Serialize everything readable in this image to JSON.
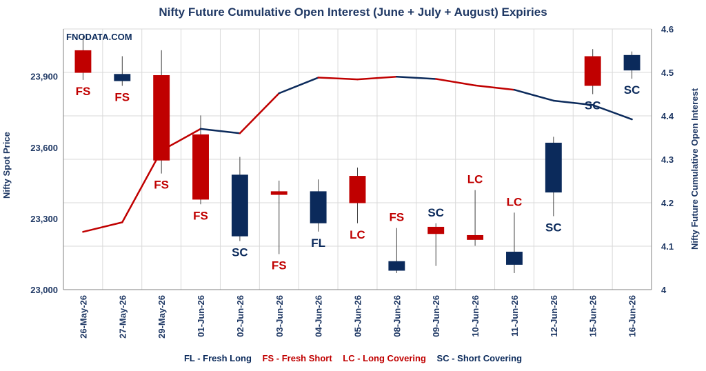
{
  "chart_data": {
    "type": "candlestick_with_line",
    "title": "Nifty Future Cumulative Open Interest (June + July + August) Expiries",
    "watermark": "FNODATA.COM",
    "ylabel_left": "Nifty Spot Price",
    "ylabel_right": "Nifty Future Cumulative Open Interest",
    "ylim_left": [
      23000,
      24100
    ],
    "yticks_left": [
      "23,000",
      "23,300",
      "23,600",
      "23,900"
    ],
    "ylim_right": [
      4.0,
      4.6
    ],
    "yticks_right": [
      "4",
      "4.1",
      "4.2",
      "4.3",
      "4.4",
      "4.5",
      "4.6"
    ],
    "grid": true,
    "categories": [
      "26-May-26",
      "27-May-26",
      "29-May-26",
      "01-Jun-26",
      "02-Jun-26",
      "03-Jun-26",
      "04-Jun-26",
      "05-Jun-26",
      "08-Jun-26",
      "09-Jun-26",
      "10-Jun-26",
      "11-Jun-26",
      "12-Jun-26",
      "15-Jun-26",
      "16-Jun-26"
    ],
    "candles": [
      {
        "open": 23915,
        "close": 24010,
        "high": 24070,
        "low": 23885,
        "color": "#c00000"
      },
      {
        "open": 23910,
        "close": 23880,
        "high": 23985,
        "low": 23860,
        "color": "#0b2a5b"
      },
      {
        "open": 23905,
        "close": 23545,
        "high": 24010,
        "low": 23490,
        "color": "#c00000"
      },
      {
        "open": 23655,
        "close": 23380,
        "high": 23735,
        "low": 23360,
        "color": "#c00000"
      },
      {
        "open": 23485,
        "close": 23225,
        "high": 23560,
        "low": 23205,
        "color": "#0b2a5b"
      },
      {
        "open": 23415,
        "close": 23400,
        "high": 23460,
        "low": 23150,
        "color": "#c00000"
      },
      {
        "open": 23415,
        "close": 23280,
        "high": 23465,
        "low": 23245,
        "color": "#0b2a5b"
      },
      {
        "open": 23480,
        "close": 23365,
        "high": 23515,
        "low": 23280,
        "color": "#c00000"
      },
      {
        "open": 23120,
        "close": 23080,
        "high": 23260,
        "low": 23070,
        "color": "#0b2a5b"
      },
      {
        "open": 23265,
        "close": 23235,
        "high": 23280,
        "low": 23100,
        "color": "#c00000"
      },
      {
        "open": 23230,
        "close": 23210,
        "high": 23420,
        "low": 23185,
        "color": "#c00000"
      },
      {
        "open": 23160,
        "close": 23105,
        "high": 23325,
        "low": 23070,
        "color": "#0b2a5b"
      },
      {
        "open": 23620,
        "close": 23410,
        "high": 23645,
        "low": 23310,
        "color": "#0b2a5b"
      },
      {
        "open": 23985,
        "close": 23860,
        "high": 24015,
        "low": 23825,
        "color": "#c00000"
      },
      {
        "open": 23990,
        "close": 23925,
        "high": 24005,
        "low": 23890,
        "color": "#0b2a5b"
      }
    ],
    "oi_line": [
      4.133,
      4.155,
      4.32,
      4.37,
      4.36,
      4.452,
      4.488,
      4.484,
      4.49,
      4.485,
      4.47,
      4.46,
      4.435,
      4.425,
      4.392
    ],
    "oi_segment_colors": [
      "#c00000",
      "#c00000",
      "#c00000",
      "#0b2a5b",
      "#c00000",
      "#0b2a5b",
      "#c00000",
      "#c00000",
      "#0b2a5b",
      "#c00000",
      "#c00000",
      "#0b2a5b",
      "#0b2a5b",
      "#0b2a5b"
    ],
    "annotations": [
      {
        "text": "FS",
        "color": "#c00000"
      },
      {
        "text": "FS",
        "color": "#c00000"
      },
      {
        "text": "FS",
        "color": "#c00000"
      },
      {
        "text": "FS",
        "color": "#c00000"
      },
      {
        "text": "SC",
        "color": "#0b2a5b"
      },
      {
        "text": "FS",
        "color": "#c00000"
      },
      {
        "text": "FL",
        "color": "#0b2a5b"
      },
      {
        "text": "LC",
        "color": "#c00000"
      },
      {
        "text": "FS",
        "color": "#c00000"
      },
      {
        "text": "SC",
        "color": "#0b2a5b"
      },
      {
        "text": "LC",
        "color": "#c00000"
      },
      {
        "text": "LC",
        "color": "#c00000"
      },
      {
        "text": "SC",
        "color": "#0b2a5b"
      },
      {
        "text": "SC",
        "color": "#0b2a5b"
      },
      {
        "text": "SC",
        "color": "#0b2a5b"
      }
    ],
    "legend": {
      "fl": "FL - Fresh Long",
      "fs": "FS - Fresh Short",
      "lc": "LC - Long Covering",
      "sc": "SC - Short Covering"
    }
  }
}
